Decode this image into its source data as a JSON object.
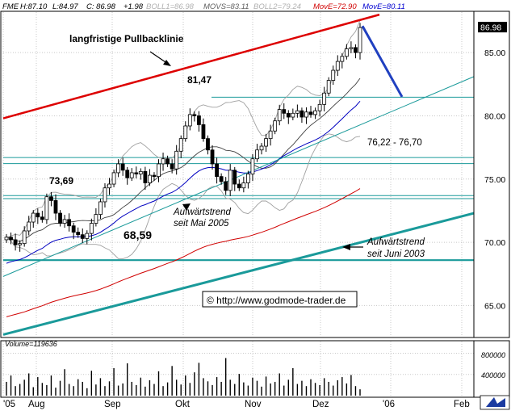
{
  "header": {
    "symbol": "FME",
    "high": "H:87.10",
    "low": "L:84.97",
    "close": "C: 86.98",
    "change": "+1.98",
    "boll1": "BOLL1=86.98",
    "movs": "MOVS=83.11",
    "boll2": "BOLL2=79.24",
    "move1": "MovE=72.90",
    "move2": "MovE=80.11"
  },
  "colors": {
    "background": "#ffffff",
    "grid": "#c8c8c8",
    "candle": "#000000",
    "bollinger": "#a0a0a0",
    "movs": "#404040",
    "ema_short": "#0000c0",
    "ema_long": "#d00000",
    "resistance_red": "#dd0000",
    "arrow_blue": "#2040c0",
    "teal": "#1a9a9a",
    "label_red": "#d00000",
    "label_blue": "#0000d0"
  },
  "chart_data": [
    {
      "type": "candlestick",
      "title": "",
      "ylim": [
        62.6,
        88.2
      ],
      "y_ticks": [
        65.0,
        70.0,
        75.0,
        80.0,
        85.0
      ],
      "y_tick_labels": [
        "65.00",
        "70.00",
        "75.00",
        "80.00",
        "85.00"
      ],
      "last_price_label": "86.98",
      "grid": true,
      "x_tick_labels": [
        "'05",
        "Aug",
        "Sep",
        "Okt",
        "Nov",
        "Dez",
        "'06",
        "Feb"
      ],
      "close_series_approx": [
        70.4,
        70.2,
        69.8,
        69.9,
        70.9,
        71.6,
        72.3,
        72.0,
        71.8,
        73.6,
        73.3,
        72.3,
        71.5,
        71.8,
        71.3,
        70.8,
        70.6,
        70.3,
        70.7,
        71.5,
        72.2,
        73.2,
        74.3,
        74.6,
        75.5,
        76.2,
        75.7,
        75.1,
        75.5,
        75.4,
        75.6,
        74.7,
        75.3,
        75.2,
        76.2,
        76.6,
        76.2,
        75.8,
        77.2,
        78.2,
        79.2,
        80.1,
        80.0,
        79.3,
        78.2,
        77.3,
        76.2,
        75.2,
        74.8,
        74.1,
        75.7,
        74.6,
        74.3,
        74.7,
        75.4,
        76.6,
        77.3,
        77.6,
        78.2,
        78.8,
        79.6,
        80.5,
        80.2,
        79.9,
        80.2,
        80.4,
        79.9,
        80.3,
        80.1,
        80.4,
        80.9,
        81.8,
        82.8,
        83.6,
        84.3,
        84.7,
        85.3,
        85.4,
        85.0,
        86.98
      ],
      "indicators": [
        {
          "name": "BOLL1",
          "last": 86.98
        },
        {
          "name": "MOVS",
          "last": 83.11
        },
        {
          "name": "BOLL2",
          "last": 79.24
        },
        {
          "name": "MovE",
          "last": 72.9
        },
        {
          "name": "MovE",
          "last": 80.11
        }
      ],
      "horizontal_levels": [
        81.47,
        76.7,
        76.22,
        73.69,
        73.45,
        68.59
      ],
      "annotations": [
        {
          "text": "langfristige Pullbacklinie"
        },
        {
          "text": "81,47"
        },
        {
          "text": "76,22 - 76,70"
        },
        {
          "text": "73,69"
        },
        {
          "text": "68,59"
        },
        {
          "text": "Aufwärtstrend seit Mai 2005"
        },
        {
          "text": "Aufwärtstrend seit Juni 2003"
        },
        {
          "text": "© http://www.godmode-trader.de"
        }
      ]
    },
    {
      "type": "bar",
      "title": "Volume=119636",
      "ylim": [
        0,
        1000000
      ],
      "y_tick_labels": [
        "400000",
        "800000"
      ],
      "last_volume": 119636,
      "volume_series_approx": [
        260000,
        380000,
        180000,
        220000,
        300000,
        420000,
        160000,
        350000,
        240000,
        200000,
        380000,
        150000,
        280000,
        500000,
        220000,
        180000,
        310000,
        260000,
        140000,
        470000,
        210000,
        330000,
        180000,
        270000,
        520000,
        190000,
        230000,
        610000,
        260000,
        200000,
        340000,
        170000,
        290000,
        220000,
        460000,
        180000,
        250000,
        560000,
        300000,
        210000,
        380000,
        240000,
        440000,
        620000,
        330000,
        270000,
        200000,
        350000,
        260000,
        710000,
        300000,
        220000,
        410000,
        250000,
        190000,
        340000,
        280000,
        170000,
        360000,
        230000,
        260000,
        420000,
        190000,
        300000,
        520000,
        220000,
        280000,
        180000,
        310000,
        240000,
        200000,
        330000,
        260000,
        190000,
        290000,
        350000,
        230000,
        390000,
        180000,
        119636
      ]
    }
  ],
  "labels": {
    "pullback": "langfristige Pullbacklinie",
    "high_level": "81,47",
    "range_level": "76,22 - 76,70",
    "level_7369": "73,69",
    "level_6859": "68,59",
    "trend_may_1": "Aufwärtstrend",
    "trend_may_2": "seit Mai 2005",
    "trend_june_1": "Aufwärtstrend",
    "trend_june_2": "seit Juni 2003",
    "watermark": "© http://www.godmode-trader.de",
    "volume": "Volume=119636",
    "vol_tick_1": "800000",
    "vol_tick_2": "400000"
  }
}
